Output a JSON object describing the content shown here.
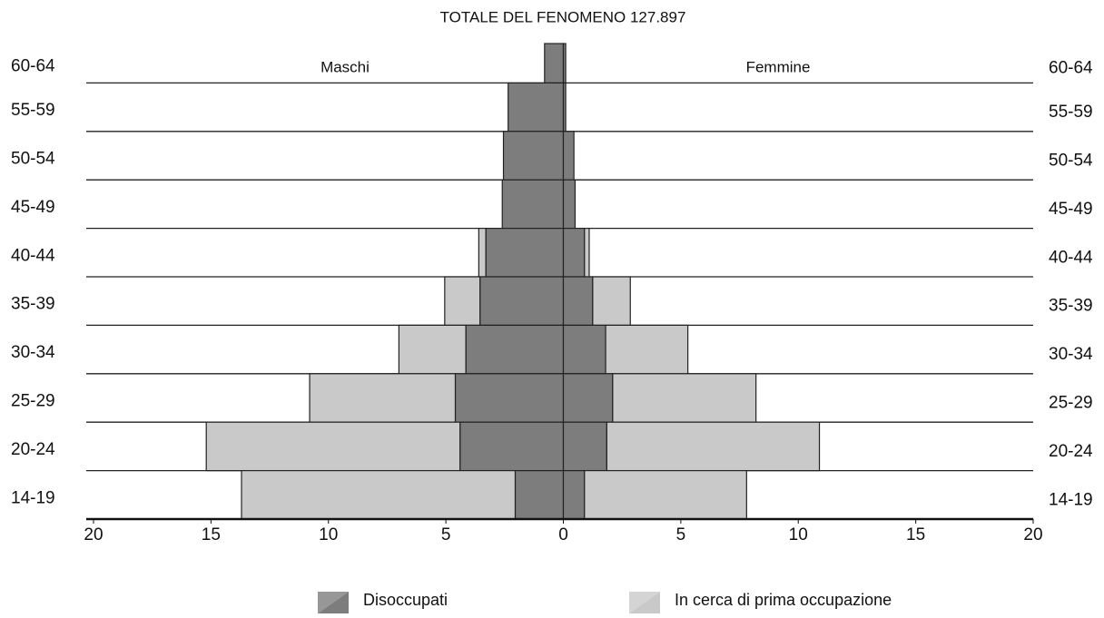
{
  "chart_data": {
    "type": "pyramid",
    "title": "TOTALE DEL FENOMENO 127.897",
    "categories": [
      "60-64",
      "55-59",
      "50-54",
      "45-49",
      "40-44",
      "35-39",
      "30-34",
      "25-29",
      "20-24",
      "14-19"
    ],
    "groups": [
      "Maschi",
      "Femmine"
    ],
    "series": [
      {
        "name": "Disoccupati",
        "color": "#7d7d7d",
        "values": [
          [
            0.8,
            2.35,
            2.55,
            2.6,
            3.3,
            3.55,
            4.15,
            4.6,
            4.4,
            2.05
          ],
          [
            0.1,
            0.1,
            0.45,
            0.5,
            0.9,
            1.25,
            1.8,
            2.1,
            1.85,
            0.9
          ]
        ]
      },
      {
        "name": "In cerca di prima occupazione",
        "color": "#c9c9c9",
        "values": [
          [
            0,
            0,
            0,
            0,
            0.3,
            1.5,
            2.85,
            6.2,
            10.8,
            11.65
          ],
          [
            0,
            0,
            0,
            0,
            0.2,
            1.6,
            3.5,
            6.1,
            9.05,
            6.9
          ]
        ]
      }
    ],
    "xlim": [
      -20,
      20
    ],
    "xticks": [
      {
        "value": -20,
        "label": "20"
      },
      {
        "value": -15,
        "label": "15"
      },
      {
        "value": -10,
        "label": "10"
      },
      {
        "value": -5,
        "label": "5"
      },
      0,
      5,
      10,
      15,
      20
    ]
  }
}
